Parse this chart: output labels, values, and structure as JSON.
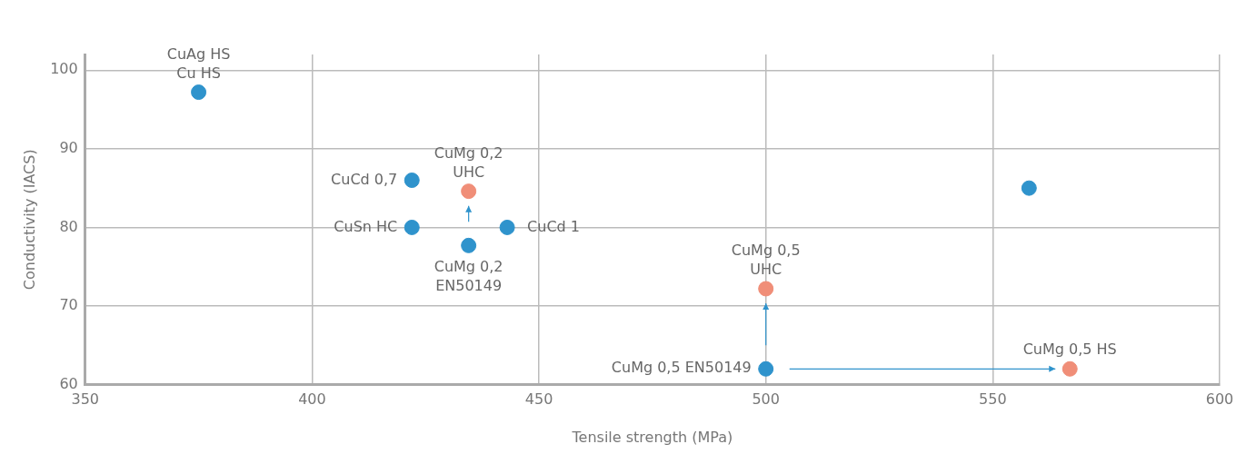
{
  "chart_data": {
    "type": "scatter",
    "xlabel": "Tensile strength (MPa)",
    "ylabel": "Conductivity (IACS)",
    "xlim": [
      350,
      600
    ],
    "xticks": [
      350,
      400,
      450,
      500,
      550,
      600
    ],
    "ylim": [
      60,
      102
    ],
    "yticks": [
      60,
      70,
      80,
      90,
      100
    ],
    "grid": true,
    "legend": false,
    "marker": "circle",
    "series": [
      {
        "color": "#2f93cc",
        "x": [
          375,
          422,
          422,
          434.5,
          443,
          500,
          558
        ],
        "values": [
          97.2,
          86,
          80,
          77.7,
          80,
          62,
          85
        ]
      },
      {
        "color": "#f08e78",
        "x": [
          434.5,
          500,
          567
        ],
        "values": [
          84.6,
          72.2,
          62
        ]
      }
    ],
    "annotations": [
      {
        "text": "CuAg HS\nCu HS",
        "x": 375,
        "y": 97.2
      },
      {
        "text": "CuCd 0,7",
        "x": 422,
        "y": 86
      },
      {
        "text": "CuSn HC",
        "x": 422,
        "y": 80
      },
      {
        "text": "CuMg 0,2\nUHC",
        "x": 434.5,
        "y": 84.6
      },
      {
        "text": "CuCd 1",
        "x": 443,
        "y": 80
      },
      {
        "text": "CuMg 0,2\nEN50149",
        "x": 434.5,
        "y": 77.7
      },
      {
        "text": "CuMg 0,5\nUHC",
        "x": 500,
        "y": 72.2
      },
      {
        "text": "CuMg 0,5 EN50149",
        "x": 500,
        "y": 62
      },
      {
        "text": "CuMg 0,5 HS",
        "x": 567,
        "y": 62
      }
    ]
  }
}
